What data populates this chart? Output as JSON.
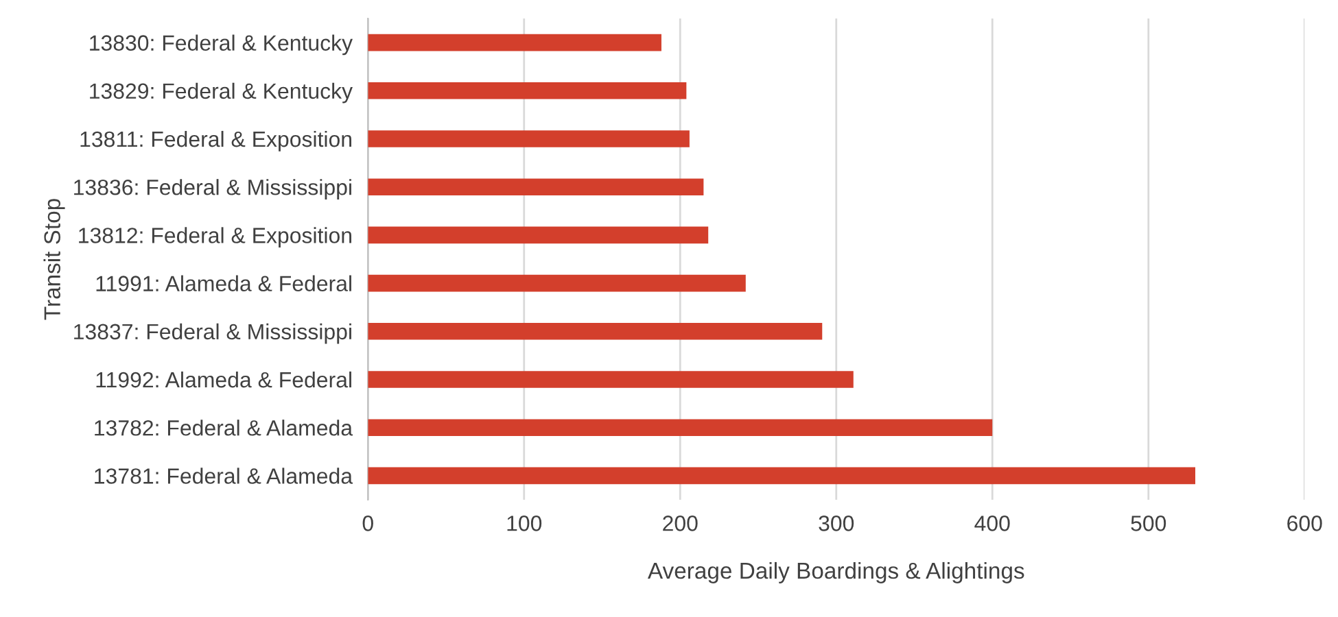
{
  "chart_data": {
    "type": "bar",
    "orientation": "horizontal",
    "ylabel": "Transit Stop",
    "xlabel": "Average Daily Boardings & Alightings",
    "categories": [
      "13830: Federal & Kentucky",
      "13829: Federal & Kentucky",
      "13811: Federal & Exposition",
      "13836: Federal & Mississippi",
      "13812: Federal & Exposition",
      "11991: Alameda & Federal",
      "13837: Federal & Mississippi",
      "11992: Alameda & Federal",
      "13782: Federal & Alameda",
      "13781: Federal & Alameda"
    ],
    "values": [
      188,
      204,
      206,
      215,
      218,
      242,
      291,
      311,
      400,
      530
    ],
    "color": "#d33f2c",
    "xlim": [
      0,
      600
    ],
    "xticks": [
      0,
      100,
      200,
      300,
      400,
      500,
      600
    ],
    "grid": "x",
    "legend": false
  }
}
